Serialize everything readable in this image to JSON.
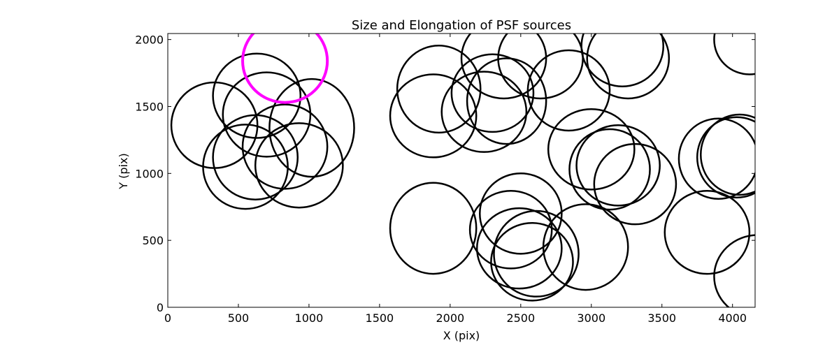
{
  "chart_data": {
    "type": "scatter",
    "title": "Size and Elongation of PSF sources",
    "xlabel": "X (pix)",
    "ylabel": "Y (pix)",
    "xlim": [
      0,
      4160
    ],
    "ylim": [
      0,
      2045
    ],
    "xticks": [
      0,
      500,
      1000,
      1500,
      2000,
      2500,
      3000,
      3500,
      4000
    ],
    "yticks": [
      0,
      500,
      1000,
      1500,
      2000
    ],
    "xtick_labels": [
      "0",
      "500",
      "1000",
      "1500",
      "2000",
      "2500",
      "3000",
      "3500",
      "4000"
    ],
    "ytick_labels": [
      "0",
      "500",
      "1000",
      "1500",
      "2000"
    ],
    "grid": false,
    "colors": {
      "source": "#000000",
      "highlight": "#ff00ff"
    },
    "series": [
      {
        "marker": "ellipse",
        "color": "#000000",
        "points": [
          {
            "x": 330,
            "y": 1360,
            "rx": 305,
            "ry": 320
          },
          {
            "x": 630,
            "y": 1580,
            "rx": 310,
            "ry": 315
          },
          {
            "x": 700,
            "y": 1440,
            "rx": 310,
            "ry": 315
          },
          {
            "x": 1020,
            "y": 1340,
            "rx": 300,
            "ry": 365
          },
          {
            "x": 550,
            "y": 1050,
            "rx": 300,
            "ry": 315
          },
          {
            "x": 830,
            "y": 1200,
            "rx": 300,
            "ry": 315
          },
          {
            "x": 620,
            "y": 1120,
            "rx": 300,
            "ry": 315
          },
          {
            "x": 930,
            "y": 1060,
            "rx": 310,
            "ry": 315
          },
          {
            "x": 1920,
            "y": 1630,
            "rx": 295,
            "ry": 325
          },
          {
            "x": 1880,
            "y": 1430,
            "rx": 305,
            "ry": 310
          },
          {
            "x": 2300,
            "y": 1600,
            "rx": 290,
            "ry": 290
          },
          {
            "x": 2400,
            "y": 1540,
            "rx": 280,
            "ry": 320
          },
          {
            "x": 2240,
            "y": 1460,
            "rx": 300,
            "ry": 300
          },
          {
            "x": 2380,
            "y": 1860,
            "rx": 300,
            "ry": 300
          },
          {
            "x": 2640,
            "y": 1860,
            "rx": 300,
            "ry": 300
          },
          {
            "x": 2840,
            "y": 1620,
            "rx": 290,
            "ry": 300
          },
          {
            "x": 3000,
            "y": 1180,
            "rx": 305,
            "ry": 300
          },
          {
            "x": 3190,
            "y": 1060,
            "rx": 295,
            "ry": 300
          },
          {
            "x": 3130,
            "y": 1030,
            "rx": 285,
            "ry": 300
          },
          {
            "x": 3310,
            "y": 920,
            "rx": 290,
            "ry": 300
          },
          {
            "x": 3220,
            "y": 1950,
            "rx": 290,
            "ry": 300
          },
          {
            "x": 3260,
            "y": 1860,
            "rx": 290,
            "ry": 300
          },
          {
            "x": 3900,
            "y": 1110,
            "rx": 280,
            "ry": 300
          },
          {
            "x": 4050,
            "y": 1140,
            "rx": 275,
            "ry": 300
          },
          {
            "x": 4030,
            "y": 1120,
            "rx": 280,
            "ry": 300
          },
          {
            "x": 4120,
            "y": 2000,
            "rx": 250,
            "ry": 260
          },
          {
            "x": 1880,
            "y": 590,
            "rx": 305,
            "ry": 340
          },
          {
            "x": 2500,
            "y": 700,
            "rx": 290,
            "ry": 300
          },
          {
            "x": 2430,
            "y": 580,
            "rx": 290,
            "ry": 290
          },
          {
            "x": 2490,
            "y": 440,
            "rx": 300,
            "ry": 300
          },
          {
            "x": 2610,
            "y": 400,
            "rx": 300,
            "ry": 320
          },
          {
            "x": 2580,
            "y": 340,
            "rx": 290,
            "ry": 290
          },
          {
            "x": 2960,
            "y": 450,
            "rx": 300,
            "ry": 320
          },
          {
            "x": 3820,
            "y": 560,
            "rx": 300,
            "ry": 310
          },
          {
            "x": 4180,
            "y": 230,
            "rx": 310,
            "ry": 310
          }
        ]
      },
      {
        "marker": "ellipse",
        "color": "#ff00ff",
        "points": [
          {
            "x": 830,
            "y": 1840,
            "rx": 300,
            "ry": 310
          }
        ]
      }
    ]
  }
}
